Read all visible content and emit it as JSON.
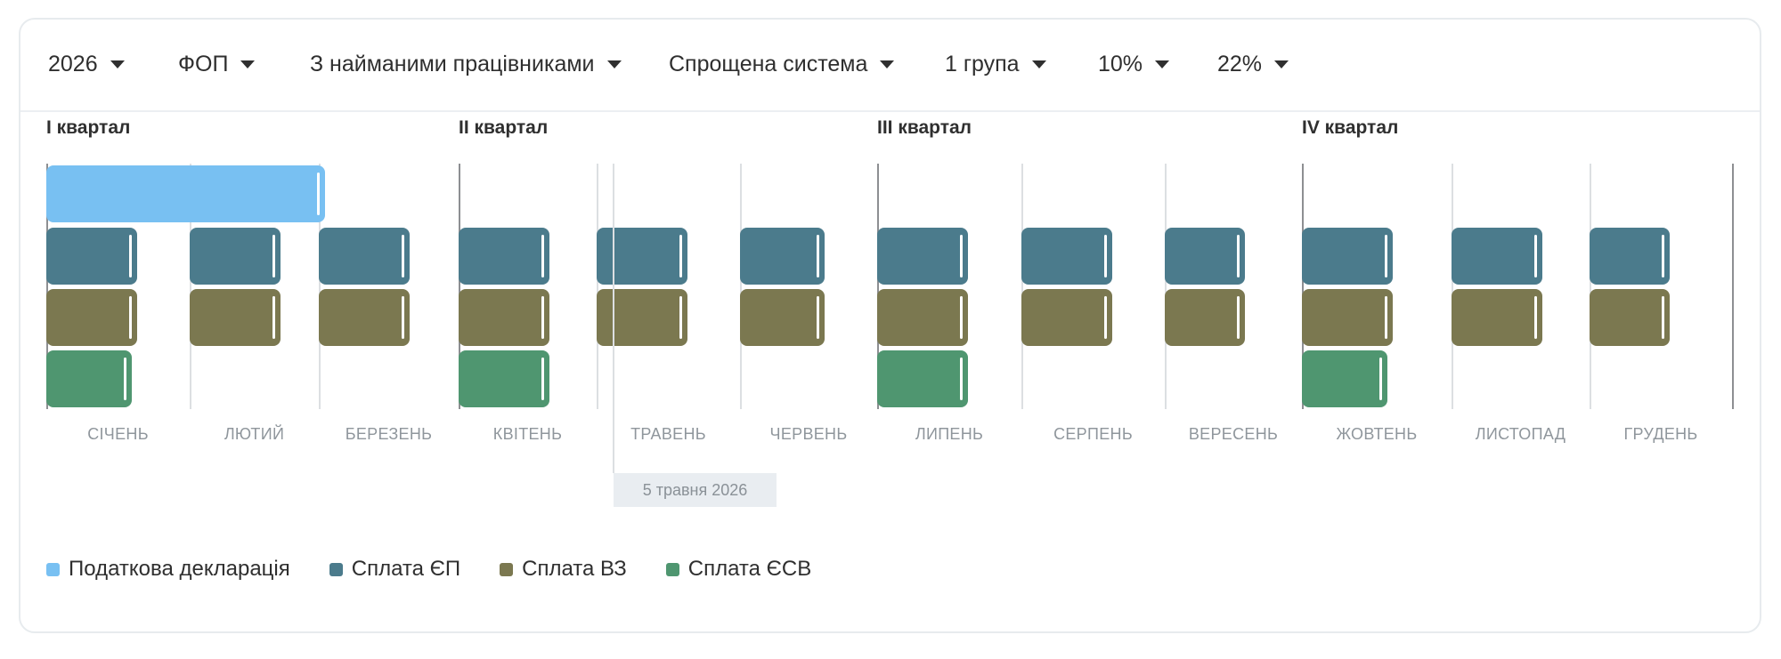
{
  "filters": [
    {
      "name": "year-select",
      "value": "2026"
    },
    {
      "name": "entity-select",
      "value": "ФОП"
    },
    {
      "name": "employees-select",
      "value": "З найманими працівниками"
    },
    {
      "name": "tax-system-select",
      "value": "Спрощена система"
    },
    {
      "name": "group-select",
      "value": "1 група"
    },
    {
      "name": "rate-select",
      "value": "10%"
    },
    {
      "name": "esv-rate-select",
      "value": "22%"
    }
  ],
  "colors": {
    "declaration": "#78c0f2",
    "ep": "#4b7b8c",
    "vz": "#7b7850",
    "esv": "#4f9670"
  },
  "chart_data": {
    "type": "bar",
    "quarters": [
      "I квартал",
      "II квартал",
      "III квартал",
      "IV квартал"
    ],
    "categories": [
      "СІЧЕНЬ",
      "ЛЮТИЙ",
      "БЕРЕЗЕНЬ",
      "КВІТЕНЬ",
      "ТРАВЕНЬ",
      "ЧЕРВЕНЬ",
      "ЛИПЕНЬ",
      "СЕРПЕНЬ",
      "ВЕРЕСЕНЬ",
      "ЖОВТЕНЬ",
      "ЛИСТОПАД",
      "ГРУДЕНЬ"
    ],
    "today_label": "5 травня 2026",
    "legend": [
      {
        "key": "declaration",
        "label": "Податкова декларація"
      },
      {
        "key": "ep",
        "label": "Сплата ЄП"
      },
      {
        "key": "vz",
        "label": "Сплата ВЗ"
      },
      {
        "key": "esv",
        "label": "Сплата ЄСВ"
      }
    ],
    "series": [
      {
        "key": "declaration",
        "events": [
          {
            "start": 1,
            "end": 3
          }
        ]
      },
      {
        "key": "ep",
        "events": [
          {
            "start": 1,
            "end": 1
          },
          {
            "start": 2,
            "end": 2
          },
          {
            "start": 3,
            "end": 3
          },
          {
            "start": 4,
            "end": 4
          },
          {
            "start": 5,
            "end": 5
          },
          {
            "start": 6,
            "end": 6
          },
          {
            "start": 7,
            "end": 7
          },
          {
            "start": 8,
            "end": 8
          },
          {
            "start": 9,
            "end": 9
          },
          {
            "start": 10,
            "end": 10
          },
          {
            "start": 11,
            "end": 11
          },
          {
            "start": 12,
            "end": 12
          }
        ]
      },
      {
        "key": "vz",
        "events": [
          {
            "start": 1,
            "end": 1
          },
          {
            "start": 2,
            "end": 2
          },
          {
            "start": 3,
            "end": 3
          },
          {
            "start": 4,
            "end": 4
          },
          {
            "start": 5,
            "end": 5
          },
          {
            "start": 6,
            "end": 6
          },
          {
            "start": 7,
            "end": 7
          },
          {
            "start": 8,
            "end": 8
          },
          {
            "start": 9,
            "end": 9
          },
          {
            "start": 10,
            "end": 10
          },
          {
            "start": 11,
            "end": 11
          },
          {
            "start": 12,
            "end": 12
          }
        ]
      },
      {
        "key": "esv",
        "events": [
          {
            "start": 1,
            "end": 1
          },
          {
            "start": 4,
            "end": 4
          },
          {
            "start": 7,
            "end": 7
          },
          {
            "start": 10,
            "end": 10
          }
        ]
      }
    ]
  }
}
